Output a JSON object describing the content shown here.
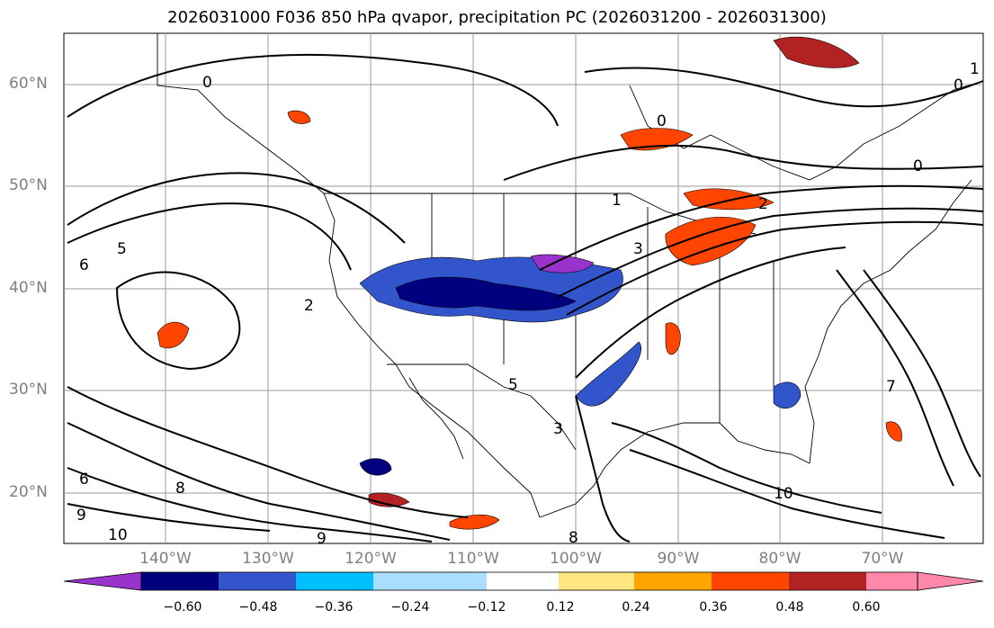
{
  "title": "2026031000 F036 850 hPa qvapor, precipitation PC (2026031200 - 2026031300)",
  "map": {
    "lat_labels": [
      "60°N",
      "50°N",
      "40°N",
      "30°N",
      "20°N"
    ],
    "lon_labels": [
      "140°W",
      "130°W",
      "120°W",
      "110°W",
      "100°W",
      "90°W",
      "80°W",
      "70°W"
    ],
    "contour_labels": [
      "0",
      "0",
      "0",
      "0",
      "1",
      "1",
      "2",
      "2",
      "3",
      "3",
      "5",
      "5",
      "6",
      "6",
      "7",
      "8",
      "8",
      "9",
      "9",
      "10",
      "10"
    ]
  },
  "colorbar": {
    "tick_labels": [
      "−0.60",
      "−0.48",
      "−0.36",
      "−0.24",
      "−0.12",
      "0.12",
      "0.24",
      "0.36",
      "0.48",
      "0.60"
    ],
    "colors": [
      "#9933cc",
      "#00007f",
      "#3355cc",
      "#00bfff",
      "#aadeff",
      "#ffffff",
      "#ffe680",
      "#ffa500",
      "#ff4500",
      "#b22222",
      "#ff88aa"
    ]
  }
}
